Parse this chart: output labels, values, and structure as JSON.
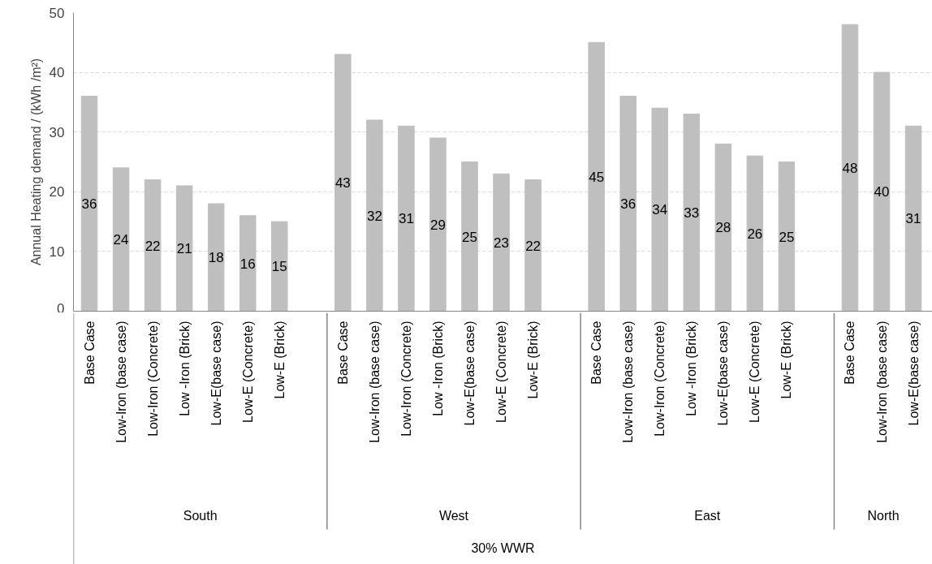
{
  "chart_data": {
    "type": "bar",
    "ylabel": "Annual Heating demand / (kWh /m²)",
    "categories": [
      "Base Case",
      "Low-Iron (base case)",
      "Low-Iron (Concrete)",
      "Low -Iron (Brick)",
      "Low-E(base case)",
      "Low-E (Concrete)",
      "Low-E (Brick)",
      null,
      "Base Case",
      "Low-Iron (base case)",
      "Low-Iron (Concrete)",
      "Low -Iron (Brick)",
      "Low-E(base case)",
      "Low-E (Concrete)",
      "Low-E (Brick)",
      null,
      "Base Case",
      "Low-Iron (base case)",
      "Low-Iron (Concrete)",
      "Low -Iron (Brick)",
      "Low-E(base case)",
      "Low-E (Concrete)",
      "Low-E (Brick)",
      null,
      "Base Case",
      "Low-Iron (base case)",
      "Low-E(base case)"
    ],
    "series": [
      {
        "color": "#bfbfbf",
        "values": [
          36,
          24,
          22,
          21,
          18,
          16,
          15,
          null,
          null,
          null,
          null,
          null,
          null,
          null,
          null,
          null,
          null,
          null,
          null,
          null,
          null,
          null,
          null,
          null,
          null,
          null,
          null
        ]
      },
      {
        "color": "#bfbfbf",
        "values": [
          null,
          null,
          null,
          null,
          null,
          null,
          null,
          null,
          43,
          32,
          31,
          29,
          25,
          23,
          22,
          null,
          null,
          null,
          null,
          null,
          null,
          null,
          null,
          null,
          null,
          null,
          null
        ]
      },
      {
        "color": "#bfbfbf",
        "values": [
          null,
          null,
          null,
          null,
          null,
          null,
          null,
          null,
          null,
          null,
          null,
          null,
          null,
          null,
          null,
          null,
          45,
          36,
          34,
          33,
          28,
          26,
          25,
          null,
          null,
          null,
          null
        ]
      },
      {
        "color": "#bfbfbf",
        "values": [
          null,
          null,
          null,
          null,
          null,
          null,
          null,
          null,
          null,
          null,
          null,
          null,
          null,
          null,
          null,
          null,
          null,
          null,
          null,
          null,
          null,
          null,
          null,
          null,
          48,
          40,
          31
        ]
      }
    ],
    "ylim": [
      0,
      50
    ],
    "yticks": [
      0,
      10,
      20,
      30,
      40,
      50
    ],
    "grid": "y",
    "data_labels": true,
    "annotations": [
      "South",
      "West",
      "East",
      "North",
      "30% WWR"
    ]
  }
}
